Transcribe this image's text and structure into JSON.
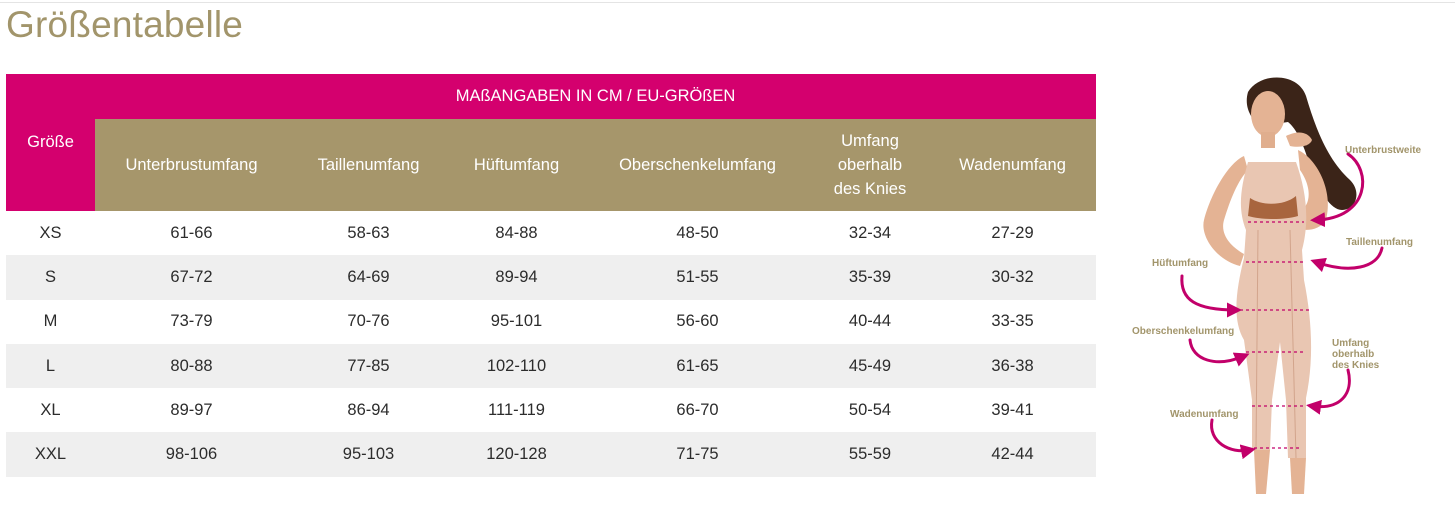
{
  "page": {
    "title": "Größentabelle"
  },
  "table": {
    "size_header": "Größe",
    "group_header": "MAßANGABEN IN CM / EU-GRÖßEN",
    "columns": [
      "Unterbrustumfang",
      "Taillenumfang",
      "Hüftumfang",
      "Oberschenkelumfang",
      "Umfang oberhalb des Knies",
      "Wadenumfang"
    ],
    "column_lines": {
      "knee": [
        "Umfang",
        "oberhalb",
        "des Knies"
      ]
    },
    "rows": [
      {
        "size": "XS",
        "values": [
          "61-66",
          "58-63",
          "84-88",
          "48-50",
          "32-34",
          "27-29"
        ]
      },
      {
        "size": "S",
        "values": [
          "67-72",
          "64-69",
          "89-94",
          "51-55",
          "35-39",
          "30-32"
        ]
      },
      {
        "size": "M",
        "values": [
          "73-79",
          "70-76",
          "95-101",
          "56-60",
          "40-44",
          "33-35"
        ]
      },
      {
        "size": "L",
        "values": [
          "80-88",
          "77-85",
          "102-110",
          "61-65",
          "45-49",
          "36-38"
        ]
      },
      {
        "size": "XL",
        "values": [
          "89-97",
          "86-94",
          "111-119",
          "66-70",
          "50-54",
          "39-41"
        ]
      },
      {
        "size": "XXL",
        "values": [
          "98-106",
          "95-103",
          "120-128",
          "71-75",
          "55-59",
          "42-44"
        ]
      }
    ]
  },
  "figure": {
    "labels": {
      "underbust": "Unterbrustweite",
      "waist": "Taillenumfang",
      "hip": "Hüftumfang",
      "thigh": "Oberschenkelumfang",
      "knee_1": "Umfang",
      "knee_2": "oberhalb",
      "knee_3": "des Knies",
      "calf": "Wadenumfang"
    }
  },
  "colors": {
    "magenta": "#d4006e",
    "gold": "#a6966b",
    "title": "#a2956b",
    "stripe": "#efefef"
  }
}
